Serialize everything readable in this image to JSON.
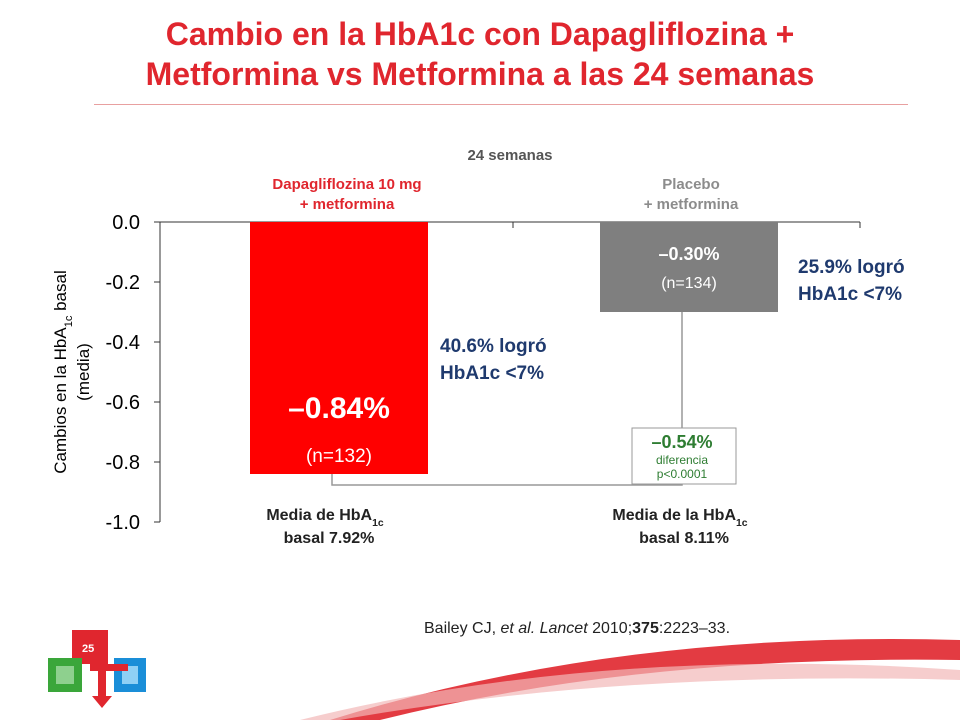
{
  "title_line1": "Cambio en la HbA1c con Dapagliflozina +",
  "title_line2": "Metformina vs Metformina a las 24 semanas",
  "page_number": "25",
  "citation": {
    "authors": "Bailey CJ, ",
    "etal": "et al.",
    "journal": "Lancet",
    "year": " 2010;",
    "volume": "375",
    "pages": ":2223–33."
  },
  "colors": {
    "title": "#e0262e",
    "dapa_bar": "#ff0000",
    "placebo_bar": "#7f7f7f",
    "dapa_label": "#e0262e",
    "placebo_label": "#8c8c8c",
    "achieved_text": "#1f3a6e",
    "diff_text": "#2e7d32"
  },
  "chart_data": {
    "type": "bar",
    "header": "24 semanas",
    "ylabel_line1": "Cambios en la HbA",
    "ylabel_sub": "1c",
    "ylabel_line1_end": " basal",
    "ylabel_line2": "(media)",
    "ylim": [
      -1.0,
      0.0
    ],
    "yticks": [
      "0.0",
      "-0.2",
      "-0.4",
      "-0.6",
      "-0.8",
      "-1.0"
    ],
    "ytick_values": [
      0.0,
      -0.2,
      -0.4,
      -0.6,
      -0.8,
      -1.0
    ],
    "grid": false,
    "categories": [
      {
        "label_line1": "Dapagliflozina 10 mg",
        "label_line2": "+ metformina",
        "value": -0.84,
        "value_label": "–0.84%",
        "n_label": "(n=132)",
        "baseline_line1": "Media de HbA",
        "baseline_sub": "1c",
        "baseline_line2": "basal 7.92%",
        "achieved_line1": "40.6% logró",
        "achieved_line2": "HbA1c <7%"
      },
      {
        "label_line1": "Placebo",
        "label_line2": "+ metformina",
        "value": -0.3,
        "value_label": "–0.30%",
        "n_label": "(n=134)",
        "baseline_line1": "Media de la HbA",
        "baseline_sub": "1c",
        "baseline_line2": "basal 8.11%",
        "achieved_line1": "25.9% logró",
        "achieved_line2": "HbA1c <7%"
      }
    ],
    "difference": {
      "value": -0.54,
      "value_label": "–0.54%",
      "label": "diferencia",
      "pvalue": "p<0.0001"
    }
  }
}
